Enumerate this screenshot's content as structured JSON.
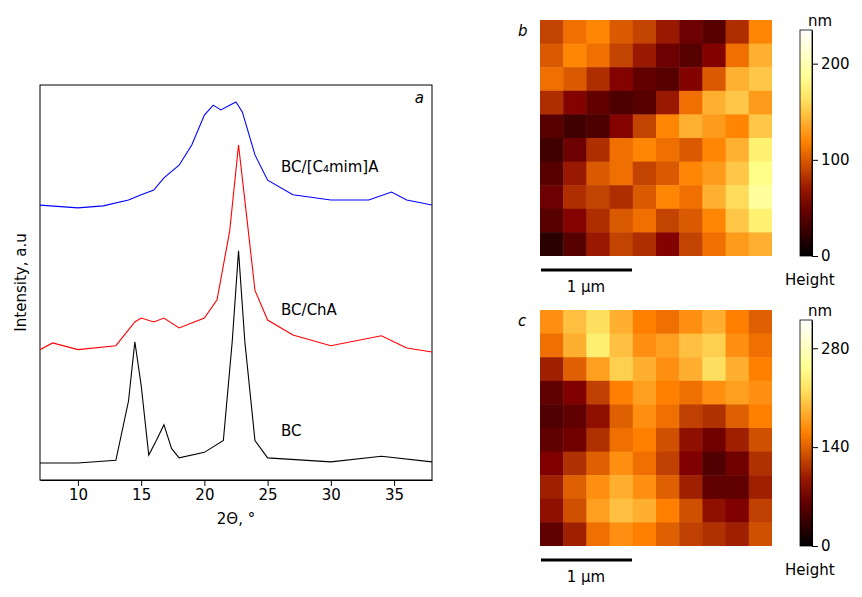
{
  "chart_data": [
    {
      "type": "line",
      "title": "a",
      "x_label": "2Θ, °",
      "y_label": "Intensity, a.u",
      "xlim": [
        7,
        38
      ],
      "xticks": [
        10,
        15,
        20,
        25,
        30,
        35
      ],
      "ylim": [
        0,
        100
      ],
      "tick_labels": "x",
      "series": [
        {
          "name": "BC/[C₄mim]A",
          "color": "#0000ff",
          "x": [
            7,
            10,
            12,
            14,
            15,
            16,
            16.8,
            18,
            19,
            20,
            20.7,
            21.3,
            22,
            22.5,
            23,
            24,
            25,
            27,
            30,
            33,
            34.8,
            36,
            38
          ],
          "values": [
            69.6,
            68.9,
            69.4,
            70.9,
            72.2,
            73.4,
            76.5,
            79.7,
            84.8,
            92.4,
            94.9,
            93.7,
            94.9,
            95.7,
            93.2,
            82.3,
            75.9,
            72.2,
            70.9,
            70.9,
            72.9,
            70.9,
            69.6
          ]
        },
        {
          "name": "BC/ChA",
          "color": "#ff0000",
          "x": [
            7,
            8,
            10,
            13,
            14.5,
            15,
            16,
            16.8,
            18,
            20,
            21,
            22,
            22.7,
            23.3,
            24,
            25,
            27,
            30,
            34,
            36,
            38
          ],
          "values": [
            33,
            34.7,
            33,
            34,
            40,
            41,
            40,
            41,
            38.5,
            41,
            45.6,
            63,
            84.8,
            68,
            48,
            40.5,
            36.7,
            34,
            36.5,
            33.4,
            32.4
          ]
        },
        {
          "name": "BC",
          "color": "#000000",
          "x": [
            7,
            10,
            13,
            14,
            14.5,
            15,
            15.6,
            16.2,
            16.8,
            17.4,
            18,
            20,
            21.5,
            22.2,
            22.7,
            23.2,
            24,
            25,
            30,
            34,
            38
          ],
          "values": [
            4.3,
            4.3,
            5,
            20,
            35,
            24,
            6.3,
            10,
            14,
            8,
            5.6,
            7,
            10,
            35,
            58,
            35,
            10,
            5.6,
            4.6,
            6,
            4.6
          ]
        }
      ]
    },
    {
      "type": "heatmap",
      "title": "b",
      "tick_labels": false,
      "annotations": [
        "1 μm",
        "Height"
      ],
      "colorbar": {
        "label": "nm",
        "range": [
          0,
          235
        ],
        "ticks": [
          0,
          100,
          200
        ]
      },
      "cells": [
        [
          90,
          110,
          120,
          100,
          90,
          70,
          50,
          40,
          80,
          120
        ],
        [
          100,
          120,
          110,
          90,
          70,
          50,
          40,
          60,
          110,
          140
        ],
        [
          110,
          100,
          80,
          60,
          45,
          40,
          60,
          100,
          140,
          150
        ],
        [
          80,
          60,
          45,
          35,
          40,
          70,
          110,
          140,
          150,
          130
        ],
        [
          40,
          30,
          35,
          60,
          90,
          120,
          140,
          130,
          120,
          150
        ],
        [
          30,
          50,
          80,
          110,
          120,
          110,
          100,
          120,
          140,
          170
        ],
        [
          40,
          70,
          100,
          110,
          90,
          100,
          120,
          130,
          150,
          180
        ],
        [
          50,
          80,
          90,
          80,
          100,
          120,
          110,
          140,
          160,
          190
        ],
        [
          40,
          60,
          80,
          100,
          110,
          90,
          100,
          120,
          150,
          170
        ],
        [
          20,
          40,
          70,
          90,
          80,
          60,
          90,
          110,
          130,
          140
        ]
      ]
    },
    {
      "type": "heatmap",
      "title": "c",
      "tick_labels": false,
      "annotations": [
        "1 μm",
        "Height"
      ],
      "colorbar": {
        "label": "nm",
        "range": [
          0,
          320
        ],
        "ticks": [
          0,
          140,
          280
        ]
      },
      "cells": [
        [
          170,
          200,
          220,
          190,
          160,
          150,
          170,
          190,
          160,
          140
        ],
        [
          150,
          190,
          230,
          200,
          170,
          180,
          200,
          210,
          170,
          150
        ],
        [
          100,
          140,
          180,
          210,
          190,
          170,
          190,
          220,
          190,
          160
        ],
        [
          60,
          80,
          120,
          160,
          180,
          160,
          150,
          170,
          180,
          170
        ],
        [
          50,
          60,
          90,
          140,
          170,
          150,
          120,
          110,
          140,
          160
        ],
        [
          60,
          70,
          110,
          150,
          160,
          130,
          90,
          70,
          100,
          130
        ],
        [
          80,
          110,
          140,
          170,
          150,
          120,
          80,
          50,
          70,
          110
        ],
        [
          100,
          140,
          170,
          190,
          170,
          140,
          100,
          60,
          60,
          100
        ],
        [
          90,
          130,
          180,
          200,
          190,
          160,
          130,
          90,
          80,
          120
        ],
        [
          60,
          100,
          150,
          170,
          160,
          140,
          120,
          110,
          100,
          130
        ]
      ]
    }
  ]
}
